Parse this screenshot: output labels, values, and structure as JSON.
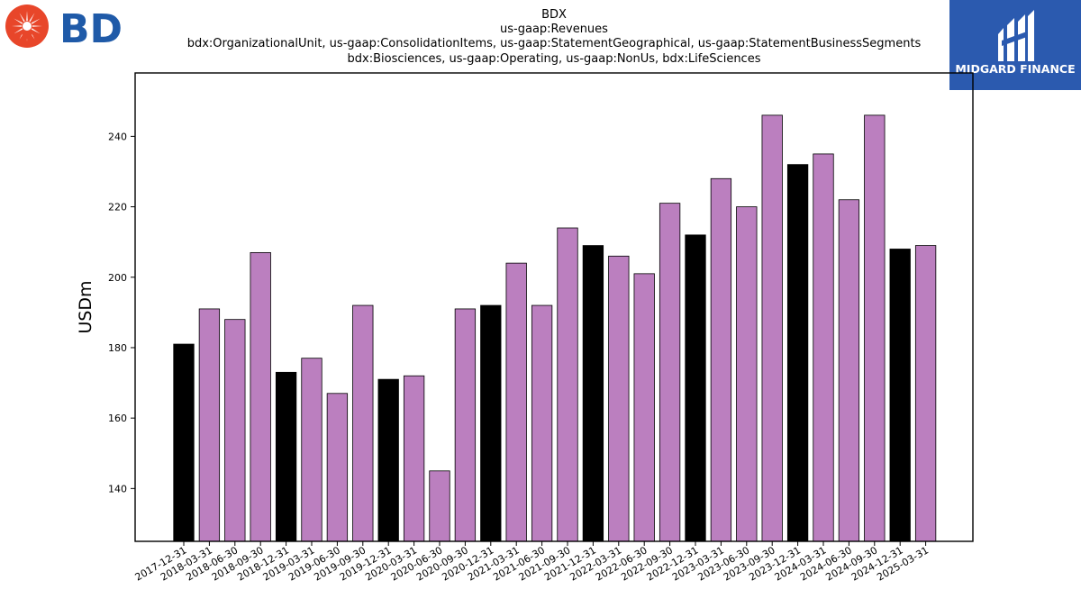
{
  "logos": {
    "company": {
      "text": "BD",
      "colors": {
        "burst": "#e8462a",
        "text": "#1f5aa8"
      }
    },
    "sponsor": {
      "text": "MIDGARD FINANCE",
      "colors": {
        "background": "#2b5aaf",
        "text": "#ffffff"
      }
    }
  },
  "colors": {
    "highlight": "#000000",
    "default": "#bb7fbf",
    "edge": "#000000"
  },
  "chart_data": {
    "type": "bar",
    "title": [
      "BDX",
      "us-gaap:Revenues",
      "bdx:OrganizationalUnit, us-gaap:ConsolidationItems, us-gaap:StatementGeographical, us-gaap:StatementBusinessSegments",
      "bdx:Biosciences, us-gaap:Operating, us-gaap:NonUs, bdx:LifeSciences"
    ],
    "xlabel": "",
    "ylabel": "USDm",
    "ylim": [
      125,
      258
    ],
    "yticks": [
      140,
      160,
      180,
      200,
      220,
      240
    ],
    "grid": false,
    "categories": [
      "2017-12-31",
      "2018-03-31",
      "2018-06-30",
      "2018-09-30",
      "2018-12-31",
      "2019-03-31",
      "2019-06-30",
      "2019-09-30",
      "2019-12-31",
      "2020-03-31",
      "2020-06-30",
      "2020-09-30",
      "2020-12-31",
      "2021-03-31",
      "2021-06-30",
      "2021-09-30",
      "2021-12-31",
      "2022-03-31",
      "2022-06-30",
      "2022-09-30",
      "2022-12-31",
      "2023-03-31",
      "2023-06-30",
      "2023-09-30",
      "2023-12-31",
      "2024-03-31",
      "2024-06-30",
      "2024-09-30",
      "2024-12-31",
      "2025-03-31"
    ],
    "values": [
      181,
      191,
      188,
      207,
      173,
      177,
      167,
      192,
      171,
      172,
      145,
      191,
      192,
      204,
      192,
      214,
      209,
      206,
      201,
      221,
      212,
      228,
      220,
      246,
      232,
      235,
      222,
      246,
      208,
      209
    ],
    "highlighted": [
      true,
      false,
      false,
      false,
      true,
      false,
      false,
      false,
      true,
      false,
      false,
      false,
      true,
      false,
      false,
      false,
      true,
      false,
      false,
      false,
      true,
      false,
      false,
      false,
      true,
      false,
      false,
      false,
      true,
      false
    ]
  }
}
